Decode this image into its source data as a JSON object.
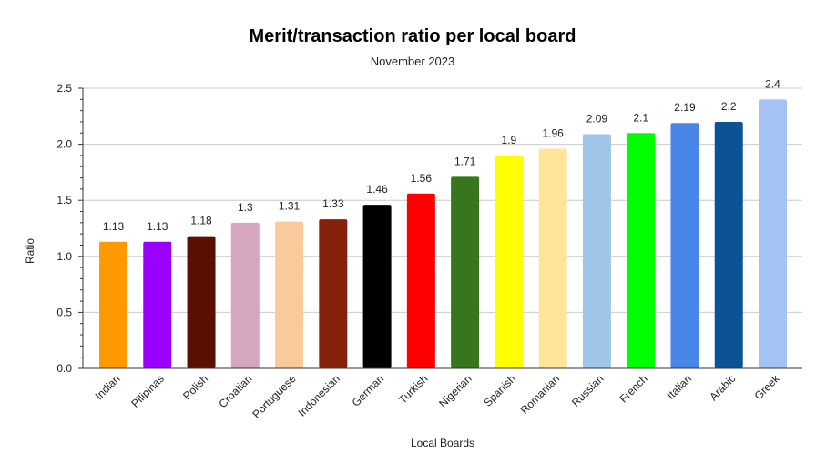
{
  "chart_data": {
    "type": "bar",
    "title": "Merit/transaction ratio per local board",
    "subtitle": "November 2023",
    "xlabel": "Local Boards",
    "ylabel": "Ratio",
    "ylim": [
      0,
      2.5
    ],
    "yticks": [
      "0.0",
      "0.5",
      "1.0",
      "1.5",
      "2.0",
      "2.5"
    ],
    "grid": true,
    "categories": [
      "Indian",
      "Pilipinas",
      "Polish",
      "Croatian",
      "Portuguese",
      "Indonesian",
      "German",
      "Turkish",
      "Nigerian",
      "Spanish",
      "Romanian",
      "Russian",
      "French",
      "Italian",
      "Arabic",
      "Greek"
    ],
    "values": [
      1.13,
      1.13,
      1.18,
      1.3,
      1.31,
      1.33,
      1.46,
      1.56,
      1.71,
      1.9,
      1.96,
      2.09,
      2.1,
      2.19,
      2.2,
      2.4
    ],
    "value_labels": [
      "1.13",
      "1.13",
      "1.18",
      "1.3",
      "1.31",
      "1.33",
      "1.46",
      "1.56",
      "1.71",
      "1.9",
      "1.96",
      "2.09",
      "2.1",
      "2.19",
      "2.2",
      "2.4"
    ],
    "colors": [
      "#ff9900",
      "#9900ff",
      "#5b0f00",
      "#d5a6bd",
      "#f9cb9c",
      "#85200c",
      "#000000",
      "#ff0000",
      "#38761d",
      "#ffff00",
      "#ffe599",
      "#9fc5e8",
      "#00ff00",
      "#4a86e8",
      "#0b5394",
      "#a4c2f4"
    ]
  }
}
